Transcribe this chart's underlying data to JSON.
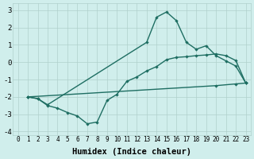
{
  "xlabel": "Humidex (Indice chaleur)",
  "xlim": [
    -0.5,
    23.5
  ],
  "ylim": [
    -4.2,
    3.4
  ],
  "bg_color": "#d0eeec",
  "grid_color_major": "#b0d0cc",
  "grid_color_minor": "#c0e0dc",
  "line_color": "#1e6e62",
  "curve1_x": [
    1,
    2,
    3,
    4,
    5,
    6,
    7,
    8,
    9,
    10,
    11,
    12,
    13,
    14,
    15,
    16,
    17,
    18,
    19,
    20,
    21,
    22,
    23
  ],
  "curve1_y": [
    -2.0,
    -2.1,
    -2.5,
    -2.65,
    -2.9,
    -3.1,
    -3.55,
    -3.45,
    -2.2,
    -1.85,
    -1.1,
    -0.85,
    -0.5,
    -0.25,
    0.15,
    0.28,
    0.32,
    0.38,
    0.42,
    0.48,
    0.38,
    0.1,
    -1.2
  ],
  "curve2_x": [
    1,
    2,
    3,
    13,
    14,
    15,
    16,
    17,
    18,
    19,
    20,
    21,
    22,
    23
  ],
  "curve2_y": [
    -2.0,
    -2.1,
    -2.45,
    1.15,
    2.6,
    2.9,
    2.4,
    1.15,
    0.75,
    0.95,
    0.38,
    0.08,
    -0.22,
    -1.2
  ],
  "curve3_x": [
    1,
    20,
    22,
    23
  ],
  "curve3_y": [
    -2.0,
    -1.35,
    -1.25,
    -1.2
  ],
  "marker": "D",
  "marker_size": 2.2,
  "linewidth": 1.0,
  "xtick_fontsize": 5.5,
  "ytick_fontsize": 6.5,
  "xlabel_fontsize": 7.5
}
